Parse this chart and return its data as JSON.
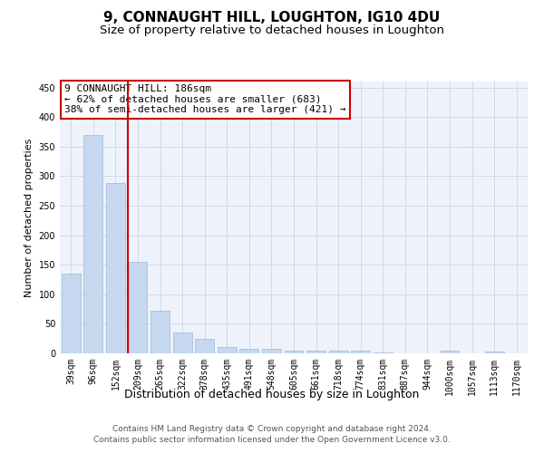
{
  "title": "9, CONNAUGHT HILL, LOUGHTON, IG10 4DU",
  "subtitle": "Size of property relative to detached houses in Loughton",
  "xlabel": "Distribution of detached houses by size in Loughton",
  "ylabel": "Number of detached properties",
  "categories": [
    "39sqm",
    "96sqm",
    "152sqm",
    "209sqm",
    "265sqm",
    "322sqm",
    "378sqm",
    "435sqm",
    "491sqm",
    "548sqm",
    "605sqm",
    "661sqm",
    "718sqm",
    "774sqm",
    "831sqm",
    "887sqm",
    "944sqm",
    "1000sqm",
    "1057sqm",
    "1113sqm",
    "1170sqm"
  ],
  "values": [
    135,
    370,
    288,
    155,
    72,
    36,
    25,
    10,
    8,
    7,
    4,
    4,
    5,
    4,
    2,
    0,
    0,
    4,
    0,
    3,
    0
  ],
  "bar_color": "#c5d8f0",
  "bar_edgecolor": "#a0b8d8",
  "vline_color": "#cc0000",
  "annotation_text": "9 CONNAUGHT HILL: 186sqm\n← 62% of detached houses are smaller (683)\n38% of semi-detached houses are larger (421) →",
  "annotation_box_color": "#ffffff",
  "annotation_box_edgecolor": "#cc0000",
  "ylim": [
    0,
    460
  ],
  "yticks": [
    0,
    50,
    100,
    150,
    200,
    250,
    300,
    350,
    400,
    450
  ],
  "grid_color": "#d0d8e8",
  "background_color": "#eef2fb",
  "footer_text": "Contains HM Land Registry data © Crown copyright and database right 2024.\nContains public sector information licensed under the Open Government Licence v3.0.",
  "title_fontsize": 11,
  "subtitle_fontsize": 9.5,
  "xlabel_fontsize": 9,
  "ylabel_fontsize": 8,
  "tick_fontsize": 7,
  "footer_fontsize": 6.5,
  "annotation_fontsize": 8
}
